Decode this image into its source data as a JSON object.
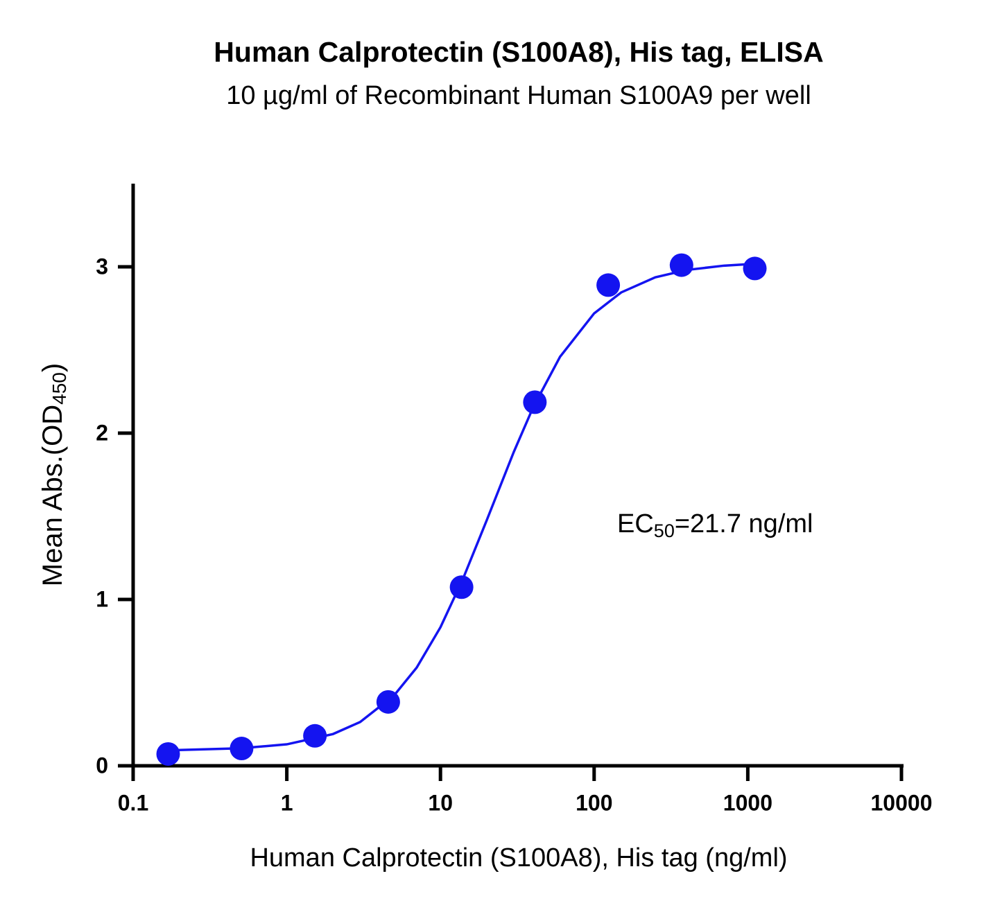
{
  "chart_data": {
    "type": "scatter",
    "title": "Human Calprotectin (S100A8), His tag, ELISA",
    "subtitle": "10 µg/ml of Recombinant Human S100A9 per well",
    "x_label": "Human Calprotectin (S100A8), His tag (ng/ml)",
    "y_label": {
      "parts": [
        "Mean Abs.(OD",
        "450",
        ")"
      ]
    },
    "annotation": {
      "parts": [
        "EC",
        "50",
        "=21.7 ng/ml"
      ]
    },
    "xscale": "log",
    "grid": false,
    "color": "#1414f0",
    "xlim": [
      0.1,
      10000
    ],
    "xticks": [
      0.1,
      1,
      10,
      100,
      1000,
      10000
    ],
    "ylim": [
      0,
      3.5
    ],
    "yticks": [
      0,
      1,
      2,
      3
    ],
    "x": [
      0.169,
      0.508,
      1.524,
      4.572,
      13.72,
      41.15,
      123.5,
      370.4,
      1111
    ],
    "values": [
      0.071,
      0.104,
      0.18,
      0.384,
      1.074,
      2.186,
      2.89,
      3.01,
      2.99
    ],
    "curve": {
      "x": [
        0.17,
        0.5,
        1,
        2,
        3,
        5,
        7,
        10,
        14,
        20,
        30,
        40,
        60,
        100,
        150,
        250,
        400,
        700,
        1111
      ],
      "values": [
        0.093,
        0.105,
        0.129,
        0.191,
        0.263,
        0.424,
        0.59,
        0.833,
        1.123,
        1.476,
        1.887,
        2.153,
        2.459,
        2.72,
        2.846,
        2.937,
        2.981,
        3.007,
        3.018
      ]
    }
  }
}
